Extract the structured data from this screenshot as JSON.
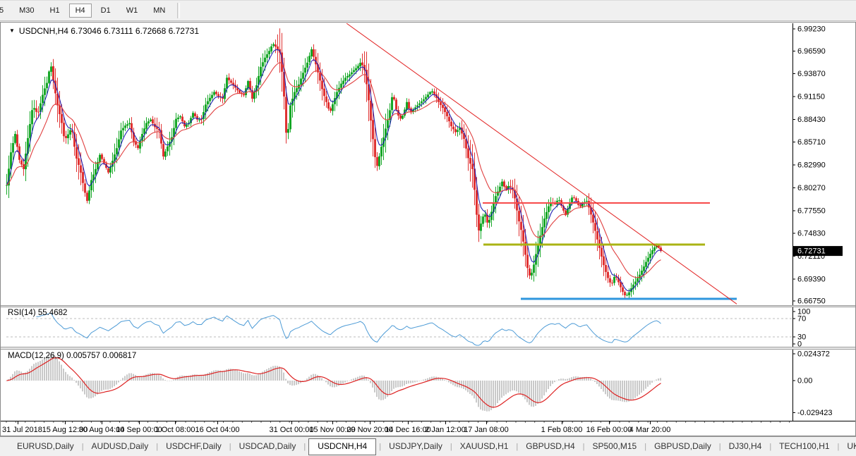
{
  "toolbar": {
    "timeframes": [
      {
        "label": "5",
        "partial": true
      },
      {
        "label": "M30"
      },
      {
        "label": "H1"
      },
      {
        "label": "H4",
        "active": true
      },
      {
        "label": "D1"
      },
      {
        "label": "W1"
      },
      {
        "label": "MN"
      }
    ]
  },
  "icons": {
    "symbol_dropdown": "▼"
  },
  "chart_data": {
    "type": "candlestick",
    "symbol": "USDCNH",
    "period": "H4",
    "title_line": "USDCNH,H4  6.73046 6.73111 6.72668 6.72731",
    "ohlc": {
      "open": 6.73046,
      "high": 6.73111,
      "low": 6.72668,
      "close": 6.72731
    },
    "ylim": [
      6.6626,
      6.999
    ],
    "y_ticks": [
      "6.99230",
      "6.96590",
      "6.93870",
      "6.91150",
      "6.88430",
      "6.85710",
      "6.82990",
      "6.80270",
      "6.77550",
      "6.74830",
      "6.72110",
      "6.69390",
      "6.66750"
    ],
    "current_price": 6.72731,
    "price_box_label": "6.72731",
    "x_labels": [
      {
        "x": 24,
        "text": "31 Jul 2018"
      },
      {
        "x": 91,
        "text": "15 Aug 12:00"
      },
      {
        "x": 143,
        "text": "30 Aug 04:00"
      },
      {
        "x": 196,
        "text": "14 Sep 00:00"
      },
      {
        "x": 247,
        "text": "1 Oct 08:00"
      },
      {
        "x": 307,
        "text": "16 Oct 04:00"
      },
      {
        "x": 412,
        "text": "31 Oct 00:00"
      },
      {
        "x": 470,
        "text": "15 Nov 00:00"
      },
      {
        "x": 523,
        "text": "29 Nov 20:00"
      },
      {
        "x": 577,
        "text": "14 Dec 16:00"
      },
      {
        "x": 630,
        "text": "2 Jan 12:00"
      },
      {
        "x": 688,
        "text": "17 Jan 08:00"
      },
      {
        "x": 795,
        "text": "1 Feb 08:00"
      },
      {
        "x": 862,
        "text": "16 Feb 00:00"
      },
      {
        "x": 920,
        "text": "4 Mar 20:00"
      }
    ],
    "close_anchors": [
      [
        8,
        6.806
      ],
      [
        14,
        6.845
      ],
      [
        20,
        6.867
      ],
      [
        26,
        6.836
      ],
      [
        32,
        6.825
      ],
      [
        38,
        6.862
      ],
      [
        45,
        6.901
      ],
      [
        52,
        6.89
      ],
      [
        60,
        6.917
      ],
      [
        66,
        6.93
      ],
      [
        70,
        6.953
      ],
      [
        75,
        6.925
      ],
      [
        80,
        6.901
      ],
      [
        86,
        6.88
      ],
      [
        90,
        6.859
      ],
      [
        96,
        6.868
      ],
      [
        100,
        6.875
      ],
      [
        106,
        6.84
      ],
      [
        112,
        6.825
      ],
      [
        118,
        6.8
      ],
      [
        122,
        6.787
      ],
      [
        128,
        6.812
      ],
      [
        134,
        6.825
      ],
      [
        140,
        6.842
      ],
      [
        146,
        6.832
      ],
      [
        152,
        6.821
      ],
      [
        158,
        6.835
      ],
      [
        164,
        6.85
      ],
      [
        170,
        6.871
      ],
      [
        176,
        6.877
      ],
      [
        182,
        6.88
      ],
      [
        188,
        6.858
      ],
      [
        194,
        6.85
      ],
      [
        200,
        6.867
      ],
      [
        206,
        6.88
      ],
      [
        212,
        6.884
      ],
      [
        218,
        6.875
      ],
      [
        224,
        6.871
      ],
      [
        230,
        6.84
      ],
      [
        236,
        6.852
      ],
      [
        242,
        6.863
      ],
      [
        248,
        6.885
      ],
      [
        254,
        6.888
      ],
      [
        260,
        6.876
      ],
      [
        266,
        6.88
      ],
      [
        272,
        6.892
      ],
      [
        278,
        6.884
      ],
      [
        284,
        6.884
      ],
      [
        290,
        6.902
      ],
      [
        296,
        6.91
      ],
      [
        302,
        6.917
      ],
      [
        308,
        6.912
      ],
      [
        314,
        6.909
      ],
      [
        320,
        6.934
      ],
      [
        326,
        6.928
      ],
      [
        332,
        6.922
      ],
      [
        338,
        6.916
      ],
      [
        344,
        6.913
      ],
      [
        350,
        6.93
      ],
      [
        356,
        6.909
      ],
      [
        362,
        6.925
      ],
      [
        368,
        6.947
      ],
      [
        374,
        6.958
      ],
      [
        380,
        6.966
      ],
      [
        385,
        6.975
      ],
      [
        390,
        6.97
      ],
      [
        395,
        6.964
      ],
      [
        400,
        6.926
      ],
      [
        405,
        6.854
      ],
      [
        410,
        6.901
      ],
      [
        416,
        6.917
      ],
      [
        422,
        6.926
      ],
      [
        428,
        6.94
      ],
      [
        434,
        6.952
      ],
      [
        440,
        6.968
      ],
      [
        446,
        6.95
      ],
      [
        451,
        6.934
      ],
      [
        456,
        6.917
      ],
      [
        461,
        6.905
      ],
      [
        466,
        6.892
      ],
      [
        471,
        6.905
      ],
      [
        476,
        6.917
      ],
      [
        482,
        6.927
      ],
      [
        488,
        6.934
      ],
      [
        494,
        6.938
      ],
      [
        500,
        6.943
      ],
      [
        505,
        6.947
      ],
      [
        510,
        6.953
      ],
      [
        515,
        6.943
      ],
      [
        520,
        6.915
      ],
      [
        525,
        6.875
      ],
      [
        532,
        6.825
      ],
      [
        538,
        6.848
      ],
      [
        544,
        6.87
      ],
      [
        550,
        6.89
      ],
      [
        555,
        6.916
      ],
      [
        560,
        6.896
      ],
      [
        565,
        6.884
      ],
      [
        570,
        6.89
      ],
      [
        575,
        6.905
      ],
      [
        580,
        6.892
      ],
      [
        585,
        6.897
      ],
      [
        590,
        6.901
      ],
      [
        595,
        6.905
      ],
      [
        600,
        6.909
      ],
      [
        605,
        6.914
      ],
      [
        610,
        6.919
      ],
      [
        615,
        6.913
      ],
      [
        620,
        6.905
      ],
      [
        626,
        6.898
      ],
      [
        632,
        6.888
      ],
      [
        638,
        6.876
      ],
      [
        644,
        6.869
      ],
      [
        650,
        6.874
      ],
      [
        656,
        6.861
      ],
      [
        662,
        6.838
      ],
      [
        668,
        6.825
      ],
      [
        672,
        6.792
      ],
      [
        676,
        6.749
      ],
      [
        680,
        6.76
      ],
      [
        685,
        6.774
      ],
      [
        690,
        6.758
      ],
      [
        695,
        6.774
      ],
      [
        700,
        6.791
      ],
      [
        705,
        6.8
      ],
      [
        710,
        6.81
      ],
      [
        715,
        6.8
      ],
      [
        720,
        6.806
      ],
      [
        725,
        6.8
      ],
      [
        728,
        6.79
      ],
      [
        733,
        6.766
      ],
      [
        738,
        6.749
      ],
      [
        742,
        6.728
      ],
      [
        746,
        6.707
      ],
      [
        750,
        6.695
      ],
      [
        755,
        6.711
      ],
      [
        760,
        6.732
      ],
      [
        765,
        6.749
      ],
      [
        770,
        6.766
      ],
      [
        775,
        6.779
      ],
      [
        780,
        6.787
      ],
      [
        785,
        6.783
      ],
      [
        790,
        6.79
      ],
      [
        795,
        6.779
      ],
      [
        800,
        6.77
      ],
      [
        805,
        6.783
      ],
      [
        810,
        6.793
      ],
      [
        815,
        6.787
      ],
      [
        820,
        6.779
      ],
      [
        825,
        6.785
      ],
      [
        830,
        6.787
      ],
      [
        835,
        6.774
      ],
      [
        840,
        6.758
      ],
      [
        845,
        6.741
      ],
      [
        850,
        6.724
      ],
      [
        855,
        6.707
      ],
      [
        860,
        6.695
      ],
      [
        865,
        6.686
      ],
      [
        870,
        6.699
      ],
      [
        875,
        6.69
      ],
      [
        880,
        6.68
      ],
      [
        885,
        6.673
      ],
      [
        890,
        6.678
      ],
      [
        895,
        6.686
      ],
      [
        900,
        6.692
      ],
      [
        905,
        6.699
      ],
      [
        910,
        6.707
      ],
      [
        915,
        6.716
      ],
      [
        920,
        6.724
      ],
      [
        925,
        6.731
      ],
      [
        930,
        6.734
      ],
      [
        935,
        6.72731
      ]
    ],
    "levels": [
      {
        "kind": "hline",
        "name": "resistance-line-red",
        "price": 6.7846,
        "x1": 683,
        "x2": 1005,
        "color": "#f74a4a",
        "width": 2
      },
      {
        "kind": "hline",
        "name": "support-line-olive",
        "price": 6.735,
        "x1": 684,
        "x2": 998,
        "color": "#aab414",
        "width": 3
      },
      {
        "kind": "hline",
        "name": "support-line-blue",
        "price": 6.6702,
        "x1": 737,
        "x2": 1043,
        "color": "#2f96dd",
        "width": 3
      },
      {
        "kind": "trendline",
        "name": "descending-trendline",
        "x1": 490,
        "price1": 6.999,
        "x2": 1043,
        "price2": 6.664,
        "color": "#e22222",
        "width": 1
      }
    ],
    "moving_averages": [
      {
        "name": "fast-ma",
        "period": 5,
        "color": "#2424b4"
      },
      {
        "name": "slow-ma",
        "period": 16,
        "color": "#e04040"
      }
    ],
    "candle_colors": {
      "up": "#16a727",
      "down": "#e03232"
    },
    "indicators": [
      {
        "name": "RSI",
        "label": "RSI(14) 55.4682",
        "period": 14,
        "value": 55.4682,
        "line_color": "#4d9bd6",
        "level_lines": [
          70,
          30
        ],
        "tick_labels": [
          "100",
          "70",
          "30",
          "0"
        ],
        "tick_values": [
          100,
          70,
          30,
          0
        ]
      },
      {
        "name": "MACD",
        "label": "MACD(12,26,9) 0.005757 0.006817",
        "params": [
          12,
          26,
          9
        ],
        "macd_value": 0.005757,
        "signal_value": 0.006817,
        "hist_color": "#c9c9c9",
        "signal_color": "#dd2222",
        "tick_labels": [
          "0.024372",
          "0.00",
          "-0.029423"
        ],
        "tick_values": [
          0.024372,
          0,
          -0.029423
        ]
      }
    ]
  },
  "tabs": {
    "items": [
      "EURUSD,Daily",
      "AUDUSD,Daily",
      "USDCHF,Daily",
      "USDCAD,Daily",
      "USDCNH,H4",
      "USDJPY,Daily",
      "XAUUSD,H1",
      "GBPUSD,H4",
      "SP500,M15",
      "GBPUSD,Daily",
      "DJ30,H4",
      "TECH100,H1",
      "UKC"
    ],
    "active_index": 4,
    "separator": "|",
    "scroll_icons": {
      "left": "◄",
      "right": "►"
    }
  }
}
